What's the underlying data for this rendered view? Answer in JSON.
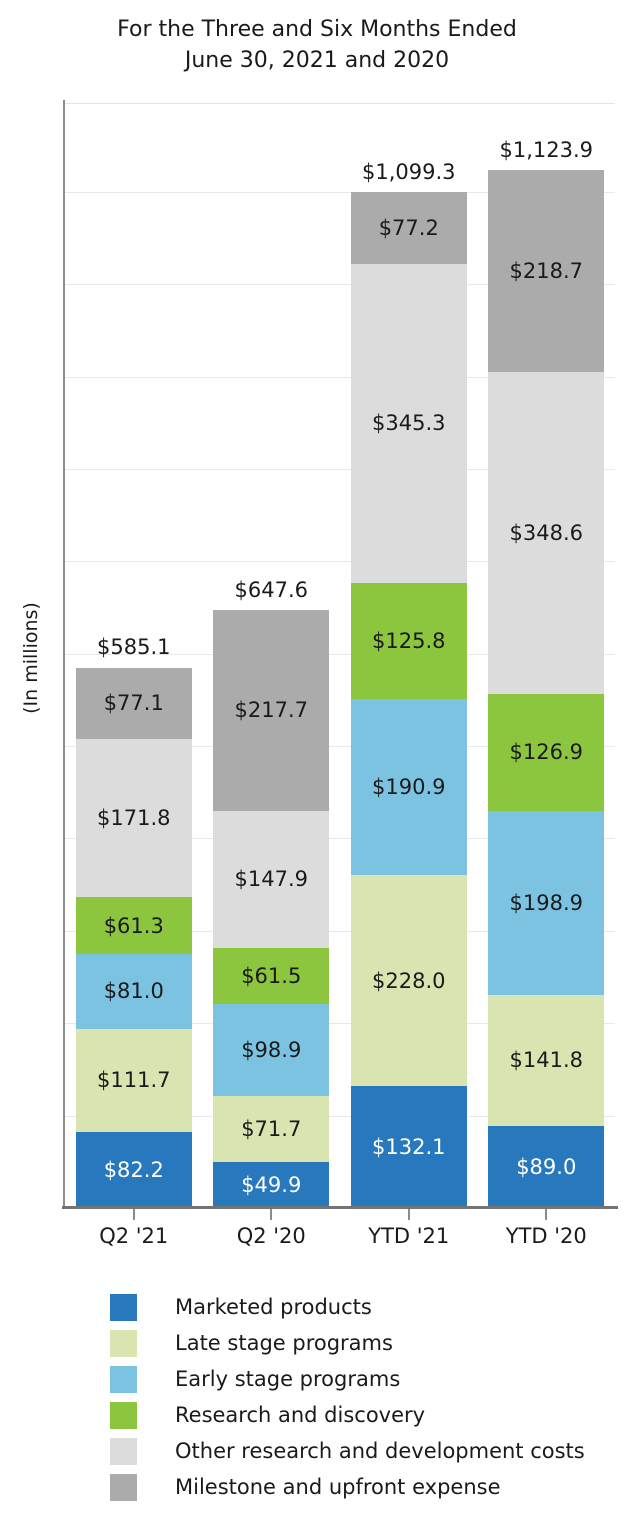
{
  "title": {
    "line1": "For the Three and Six Months Ended",
    "line2": "June 30, 2021 and 2020"
  },
  "y_axis": {
    "label": "(In millions)"
  },
  "chart_data": {
    "type": "bar",
    "stacked": true,
    "title": "For the Three and Six Months Ended June 30, 2021 and 2020",
    "ylabel": "(In millions)",
    "xlabel": "",
    "categories": [
      "Q2 '21",
      "Q2 '20",
      "YTD '21",
      "YTD '20"
    ],
    "series": [
      {
        "name": "Marketed products",
        "color": "#2878BE",
        "value_label_color": "#FFFFFF",
        "values": [
          82.2,
          49.9,
          132.1,
          89.0
        ]
      },
      {
        "name": "Late stage programs",
        "color": "#D9E5B1",
        "values": [
          111.7,
          71.7,
          228.0,
          141.8
        ]
      },
      {
        "name": "Early stage programs",
        "color": "#7CC3E2",
        "values": [
          81.0,
          98.9,
          190.9,
          198.9
        ]
      },
      {
        "name": "Research and discovery",
        "color": "#8CC63F",
        "values": [
          61.3,
          61.5,
          125.8,
          126.9
        ]
      },
      {
        "name": "Other research and development costs",
        "color": "#DCDCDC",
        "values": [
          171.8,
          147.9,
          345.3,
          348.6
        ]
      },
      {
        "name": "Milestone and upfront expense",
        "color": "#ABABAB",
        "values": [
          77.1,
          217.7,
          77.2,
          218.7
        ]
      }
    ],
    "totals": [
      585.1,
      647.6,
      1099.3,
      1123.9
    ],
    "total_labels": [
      "$585.1",
      "$647.6",
      "$1,099.3",
      "$1,123.9"
    ],
    "value_prefix": "$",
    "ylim": [
      0,
      1195
    ],
    "gridline_step": 100,
    "grid": "horizontal",
    "legend_position": "bottom-left",
    "y_tick_labels_visible": false
  }
}
